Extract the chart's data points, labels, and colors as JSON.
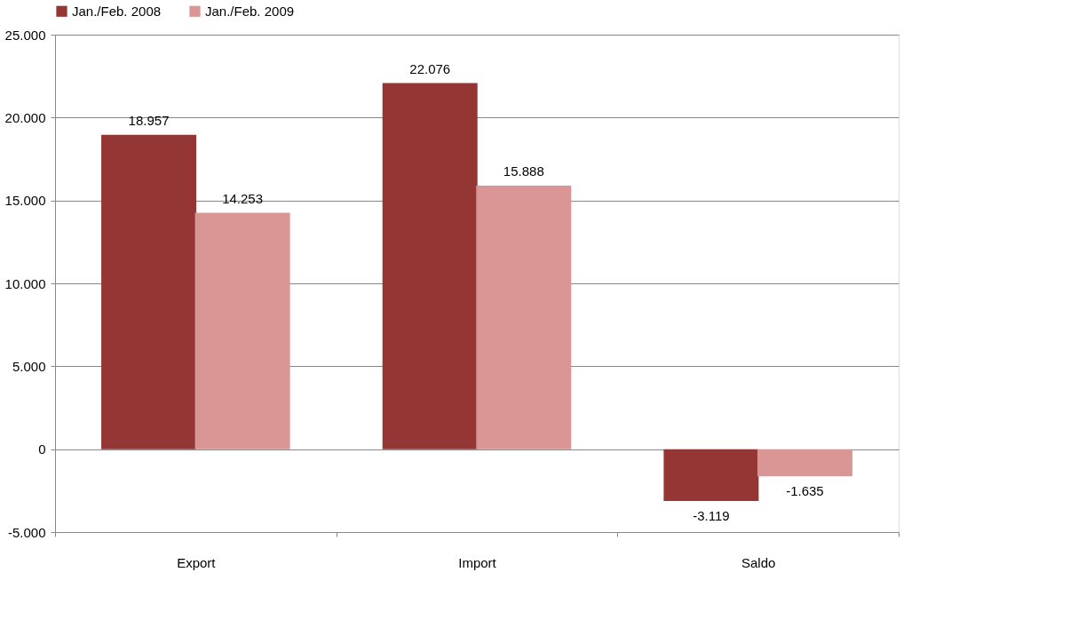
{
  "chart_data": {
    "type": "bar",
    "categories": [
      "Export",
      "Import",
      "Saldo"
    ],
    "series": [
      {
        "name": "Jan./Feb. 2008",
        "color": "#943634",
        "values": [
          18957,
          22076,
          -3119
        ],
        "value_labels": [
          "18.957",
          "22.076",
          "-3.119"
        ]
      },
      {
        "name": "Jan./Feb. 2009",
        "color": "#d99694",
        "values": [
          14253,
          15888,
          -1635
        ],
        "value_labels": [
          "14.253",
          "15.888",
          "-1.635"
        ]
      }
    ],
    "ylim": [
      -5000,
      25000
    ],
    "yticks": [
      {
        "value": -5000,
        "label": "-5.000"
      },
      {
        "value": 0,
        "label": "0"
      },
      {
        "value": 5000,
        "label": "5.000"
      },
      {
        "value": 10000,
        "label": "10.000"
      },
      {
        "value": 15000,
        "label": "15.000"
      },
      {
        "value": 20000,
        "label": "20.000"
      },
      {
        "value": 25000,
        "label": "25.000"
      }
    ],
    "grid": "y",
    "legend": "top"
  }
}
